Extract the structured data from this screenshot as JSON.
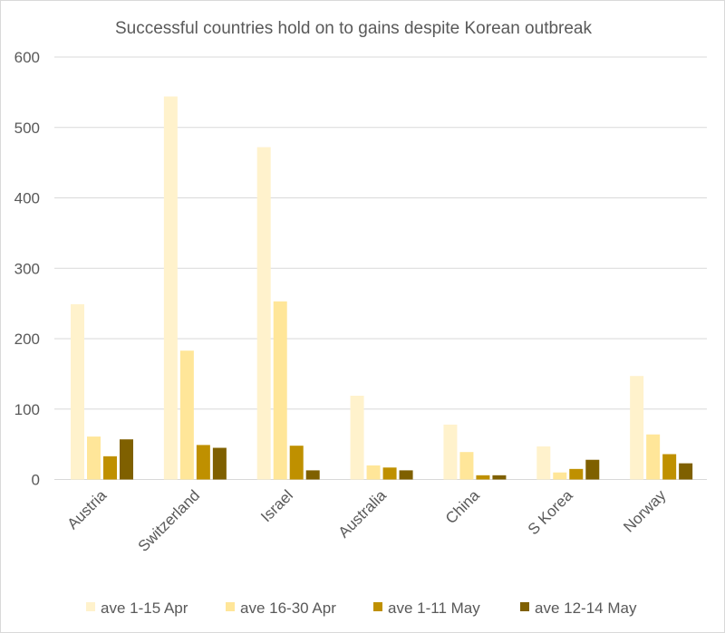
{
  "chart_data": {
    "type": "bar",
    "title": "Successful countries hold on to gains despite Korean outbreak",
    "xlabel": "",
    "ylabel": "",
    "ylim": [
      0,
      600
    ],
    "yticks": [
      "0",
      "100",
      "200",
      "300",
      "400",
      "500",
      "600"
    ],
    "grid": true,
    "legend_position": "bottom",
    "categories": [
      "Austria",
      "Switzerland",
      "Israel",
      "Australia",
      "China",
      "S Korea",
      "Norway"
    ],
    "series": [
      {
        "name": "ave 1-15 Apr",
        "color": "#FFF2CC",
        "values": [
          249,
          544,
          472,
          119,
          78,
          47,
          147
        ]
      },
      {
        "name": "ave 16-30 Apr",
        "color": "#FFE699",
        "values": [
          61,
          183,
          253,
          20,
          39,
          10,
          64
        ]
      },
      {
        "name": "ave 1-11 May",
        "color": "#BF9000",
        "values": [
          33,
          49,
          48,
          17,
          6,
          15,
          36
        ]
      },
      {
        "name": "ave 12-14 May",
        "color": "#7F6000",
        "values": [
          57,
          45,
          13,
          13,
          6,
          28,
          23
        ]
      }
    ]
  }
}
